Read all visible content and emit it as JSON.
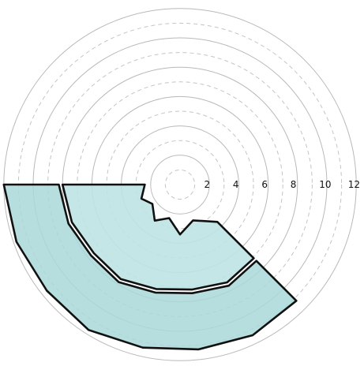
{
  "chart_data": {
    "type": "polar-area",
    "style": "hand-drawn watercolor",
    "r_ticks": [
      "2",
      "4",
      "6",
      "8",
      "10",
      "12"
    ],
    "r_max": 12,
    "grid": true,
    "angle_range_deg": [
      180,
      315
    ],
    "series": [
      {
        "values_outer": [
          12,
          11.8,
          11.6,
          11.7,
          11.4,
          11.3,
          11.4,
          11.2
        ],
        "color": "#a9d8d8"
      },
      {
        "values_outer": [
          8,
          7.8,
          7.5,
          7.6,
          7.3,
          7.2,
          7.4,
          7.1
        ],
        "color": "#bfe3e3"
      }
    ],
    "inner_edge": [
      {
        "angle_deg": 180,
        "r": 2.4
      },
      {
        "angle_deg": 200,
        "r": 2.8
      },
      {
        "angle_deg": 215,
        "r": 2.3
      },
      {
        "angle_deg": 235,
        "r": 3.0
      },
      {
        "angle_deg": 252,
        "r": 2.4
      },
      {
        "angle_deg": 270,
        "r": 3.4
      },
      {
        "angle_deg": 290,
        "r": 2.6
      },
      {
        "angle_deg": 315,
        "r": 3.6
      }
    ]
  }
}
